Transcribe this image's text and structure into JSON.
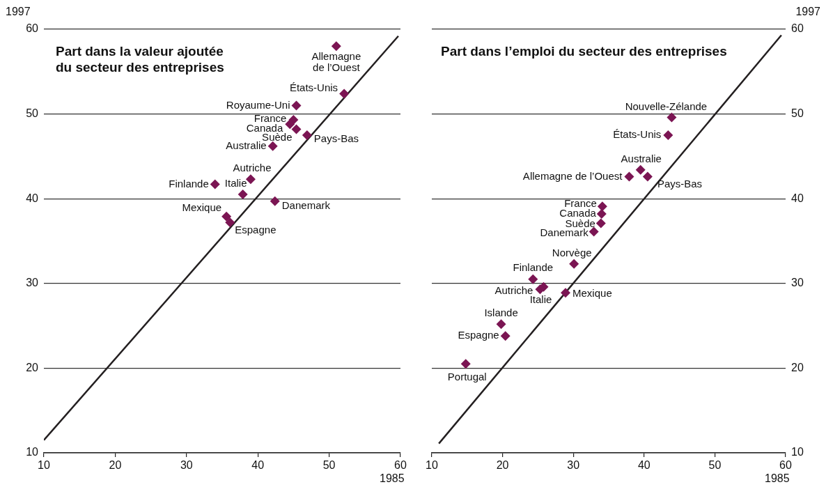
{
  "chart_data": [
    {
      "type": "scatter",
      "title": "Part dans la valeur ajoutée du secteur des entreprises",
      "xlabel": "1985",
      "ylabel": "1997",
      "xlim": [
        10,
        60
      ],
      "ylim": [
        10,
        60
      ],
      "xticks": [
        10,
        20,
        30,
        40,
        50,
        60
      ],
      "yticks": [
        10,
        20,
        30,
        40,
        50,
        60
      ],
      "grid": "y",
      "legend": false,
      "marker": "diamond",
      "series": [
        {
          "type": "scatter",
          "color": "#7b1553",
          "x": [
            51.0,
            52.1,
            45.4,
            45.0,
            44.5,
            45.4,
            46.9,
            42.1,
            39.0,
            34.0,
            37.9,
            42.4,
            35.6,
            36.1
          ],
          "values": [
            58.0,
            52.4,
            51.0,
            49.3,
            48.8,
            48.2,
            47.5,
            46.2,
            42.3,
            41.7,
            40.5,
            39.7,
            37.9,
            37.2
          ]
        },
        {
          "type": "line",
          "color": "#231f20",
          "marker": "none",
          "x": [
            10,
            59.7
          ],
          "values": [
            11.5,
            59.2
          ]
        }
      ],
      "annotations": [
        {
          "text": "Allemagne de l’Ouest",
          "x": 51.0,
          "y": 58.0
        },
        {
          "text": "États-Unis",
          "x": 52.1,
          "y": 52.4
        },
        {
          "text": "Royaume-Uni",
          "x": 45.4,
          "y": 51.0
        },
        {
          "text": "France",
          "x": 45.0,
          "y": 49.3
        },
        {
          "text": "Canada",
          "x": 44.5,
          "y": 48.8
        },
        {
          "text": "Suède",
          "x": 45.4,
          "y": 48.2
        },
        {
          "text": "Pays-Bas",
          "x": 46.9,
          "y": 47.5
        },
        {
          "text": "Australie",
          "x": 42.1,
          "y": 46.2
        },
        {
          "text": "Autriche",
          "x": 39.0,
          "y": 42.3
        },
        {
          "text": "Finlande",
          "x": 34.0,
          "y": 41.7
        },
        {
          "text": "Italie",
          "x": 37.9,
          "y": 40.5
        },
        {
          "text": "Danemark",
          "x": 42.4,
          "y": 39.7
        },
        {
          "text": "Mexique",
          "x": 35.6,
          "y": 37.9
        },
        {
          "text": "Espagne",
          "x": 36.1,
          "y": 37.2
        }
      ]
    },
    {
      "type": "scatter",
      "title": "Part dans l’emploi du secteur des entreprises",
      "xlabel": "1985",
      "ylabel": "1997",
      "xlim": [
        10,
        60
      ],
      "ylim": [
        10,
        60
      ],
      "xticks": [
        10,
        20,
        30,
        40,
        50,
        60
      ],
      "yticks": [
        10,
        20,
        30,
        40,
        50,
        60
      ],
      "grid": "y",
      "legend": false,
      "marker": "diamond",
      "series": [
        {
          "type": "scatter",
          "color": "#7b1553",
          "x": [
            43.9,
            43.4,
            39.5,
            37.9,
            40.5,
            34.1,
            34.0,
            33.9,
            32.9,
            30.1,
            24.3,
            25.3,
            25.8,
            28.9,
            19.8,
            20.4,
            14.8
          ],
          "values": [
            49.6,
            47.5,
            43.4,
            42.6,
            42.6,
            39.1,
            38.2,
            37.1,
            36.1,
            32.3,
            30.5,
            29.3,
            29.6,
            28.9,
            25.2,
            23.8,
            20.5
          ]
        },
        {
          "type": "line",
          "color": "#231f20",
          "marker": "none",
          "x": [
            11,
            59.4
          ],
          "values": [
            11.1,
            59.3
          ]
        }
      ],
      "annotations": [
        {
          "text": "Nouvelle-Zélande",
          "x": 43.9,
          "y": 49.6
        },
        {
          "text": "États-Unis",
          "x": 43.4,
          "y": 47.5
        },
        {
          "text": "Australie",
          "x": 39.5,
          "y": 43.4
        },
        {
          "text": "Allemagne de l’Ouest",
          "x": 37.9,
          "y": 42.6
        },
        {
          "text": "Pays-Bas",
          "x": 40.5,
          "y": 42.6
        },
        {
          "text": "France",
          "x": 34.1,
          "y": 39.1
        },
        {
          "text": "Canada",
          "x": 34.0,
          "y": 38.2
        },
        {
          "text": "Suède",
          "x": 33.9,
          "y": 37.1
        },
        {
          "text": "Danemark",
          "x": 32.9,
          "y": 36.1
        },
        {
          "text": "Norvège",
          "x": 30.1,
          "y": 32.3
        },
        {
          "text": "Finlande",
          "x": 24.3,
          "y": 30.5
        },
        {
          "text": "Autriche",
          "x": 25.3,
          "y": 29.3
        },
        {
          "text": "Italie",
          "x": 25.8,
          "y": 29.6
        },
        {
          "text": "Mexique",
          "x": 28.9,
          "y": 28.9
        },
        {
          "text": "Islande",
          "x": 19.8,
          "y": 25.2
        },
        {
          "text": "Espagne",
          "x": 20.4,
          "y": 23.8
        },
        {
          "text": "Portugal",
          "x": 14.8,
          "y": 20.5
        }
      ]
    }
  ]
}
